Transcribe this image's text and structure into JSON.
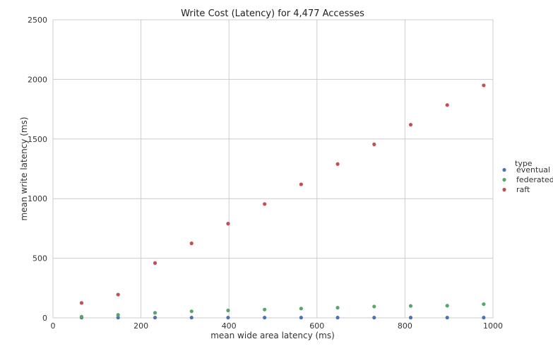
{
  "chart_data": {
    "type": "scatter",
    "title": "Write Cost (Latency) for 4,477 Accesses",
    "xlabel": "mean wide area latency (ms)",
    "ylabel": "mean write latency (ms)",
    "xlim": [
      0,
      1000
    ],
    "ylim": [
      0,
      2500
    ],
    "xticks": [
      0,
      200,
      400,
      600,
      800,
      1000
    ],
    "yticks": [
      0,
      500,
      1000,
      1500,
      2000,
      2500
    ],
    "grid": true,
    "legend": {
      "title": "type",
      "placement": "right"
    },
    "series": [
      {
        "name": "eventual",
        "color": "#4c72b0",
        "points": [
          [
            65,
            2
          ],
          [
            148,
            2
          ],
          [
            232,
            2
          ],
          [
            315,
            2
          ],
          [
            398,
            2
          ],
          [
            481,
            2
          ],
          [
            564,
            2
          ],
          [
            647,
            2
          ],
          [
            730,
            2
          ],
          [
            813,
            2
          ],
          [
            896,
            2
          ],
          [
            979,
            2
          ]
        ]
      },
      {
        "name": "federated",
        "color": "#55a868",
        "points": [
          [
            65,
            10
          ],
          [
            148,
            25
          ],
          [
            232,
            42
          ],
          [
            315,
            55
          ],
          [
            398,
            62
          ],
          [
            481,
            70
          ],
          [
            564,
            78
          ],
          [
            647,
            85
          ],
          [
            730,
            95
          ],
          [
            813,
            100
          ],
          [
            896,
            102
          ],
          [
            979,
            115
          ]
        ]
      },
      {
        "name": "raft",
        "color": "#c44e52",
        "points": [
          [
            65,
            125
          ],
          [
            148,
            195
          ],
          [
            232,
            460
          ],
          [
            315,
            625
          ],
          [
            398,
            790
          ],
          [
            481,
            955
          ],
          [
            564,
            1120
          ],
          [
            647,
            1290
          ],
          [
            730,
            1455
          ],
          [
            813,
            1620
          ],
          [
            896,
            1785
          ],
          [
            979,
            1950
          ]
        ]
      }
    ]
  }
}
